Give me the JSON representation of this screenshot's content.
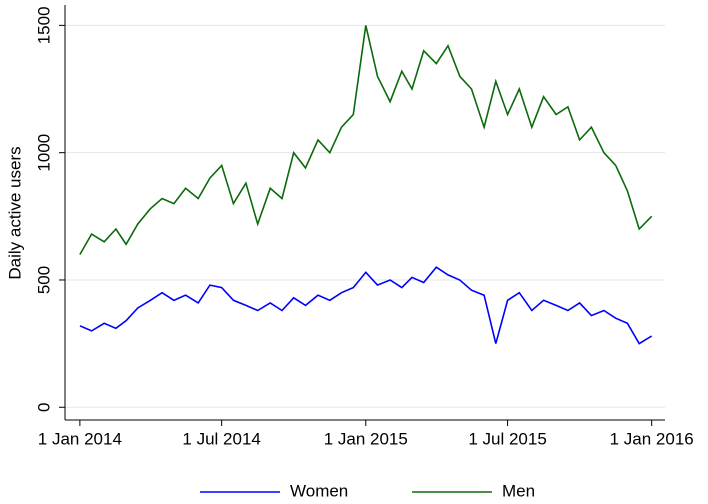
{
  "chart_data": {
    "type": "line",
    "ylabel": "Daily active users",
    "x": [
      "2014-01-01",
      "2014-01-16",
      "2014-02-01",
      "2014-02-16",
      "2014-03-01",
      "2014-03-16",
      "2014-04-01",
      "2014-04-16",
      "2014-05-01",
      "2014-05-16",
      "2014-06-01",
      "2014-06-16",
      "2014-07-01",
      "2014-07-16",
      "2014-08-01",
      "2014-08-16",
      "2014-09-01",
      "2014-09-16",
      "2014-10-01",
      "2014-10-16",
      "2014-11-01",
      "2014-11-16",
      "2014-12-01",
      "2014-12-16",
      "2015-01-01",
      "2015-01-16",
      "2015-02-01",
      "2015-02-16",
      "2015-03-01",
      "2015-03-16",
      "2015-04-01",
      "2015-04-16",
      "2015-05-01",
      "2015-05-16",
      "2015-06-01",
      "2015-06-16",
      "2015-07-01",
      "2015-07-16",
      "2015-08-01",
      "2015-08-16",
      "2015-09-01",
      "2015-09-16",
      "2015-10-01",
      "2015-10-16",
      "2015-11-01",
      "2015-11-16",
      "2015-12-01",
      "2015-12-16",
      "2016-01-01"
    ],
    "series": [
      {
        "name": "Women",
        "color": "#0000ff",
        "values": [
          320,
          300,
          330,
          310,
          340,
          390,
          420,
          450,
          420,
          440,
          410,
          480,
          470,
          420,
          400,
          380,
          410,
          380,
          430,
          400,
          440,
          420,
          450,
          470,
          530,
          480,
          500,
          470,
          510,
          490,
          550,
          520,
          500,
          460,
          440,
          250,
          420,
          450,
          380,
          420,
          400,
          380,
          410,
          360,
          380,
          350,
          330,
          250,
          280
        ]
      },
      {
        "name": "Men",
        "color": "#0b6b0b",
        "values": [
          600,
          680,
          650,
          700,
          640,
          720,
          780,
          820,
          800,
          860,
          820,
          900,
          950,
          800,
          880,
          720,
          860,
          820,
          1000,
          940,
          1050,
          1000,
          1100,
          1150,
          1500,
          1300,
          1200,
          1320,
          1250,
          1400,
          1350,
          1420,
          1300,
          1250,
          1100,
          1280,
          1150,
          1250,
          1100,
          1220,
          1150,
          1180,
          1050,
          1100,
          1000,
          950,
          850,
          700,
          750
        ]
      }
    ],
    "xlim": [
      "2013-12-13",
      "2016-01-18"
    ],
    "xticks": [
      {
        "value": "2014-01-01",
        "label": "1 Jan 2014"
      },
      {
        "value": "2014-07-01",
        "label": "1 Jul 2014"
      },
      {
        "value": "2015-01-01",
        "label": "1 Jan 2015"
      },
      {
        "value": "2015-07-01",
        "label": "1 Jul 2015"
      },
      {
        "value": "2016-01-01",
        "label": "1 Jan 2016"
      }
    ],
    "ylim": [
      -50,
      1580
    ],
    "yticks": [
      0,
      500,
      1000,
      1500
    ],
    "grid": true,
    "legend": "bottom"
  }
}
